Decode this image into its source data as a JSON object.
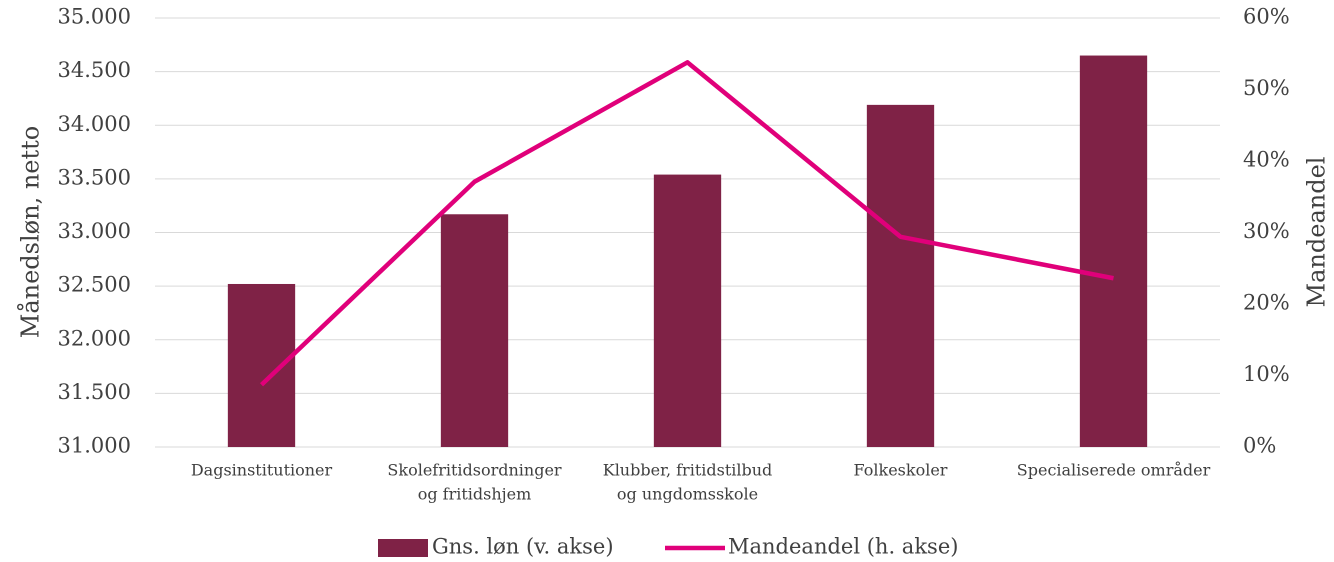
{
  "chart_data": {
    "type": "bar_line",
    "y_label": "Månedsløn, netto",
    "y2_label": "Mandeandel",
    "categories": [
      [
        "Dagsinstitutioner"
      ],
      [
        "Skolefritidsordninger",
        "og fritidshjem"
      ],
      [
        "Klubber, fritidstilbud",
        "og ungdomsskole"
      ],
      [
        "Folkeskoler"
      ],
      [
        "Specialiserede områder"
      ]
    ],
    "series": [
      {
        "name": "Gns. løn (v. akse)",
        "type": "bar",
        "color": "#7f2246",
        "values": [
          32520,
          33170,
          33540,
          34190,
          34650
        ]
      },
      {
        "name": "Mandeandel (h. akse)",
        "type": "line",
        "axis": "y2",
        "color": "#e0007a",
        "values": [
          8.7,
          37.1,
          53.8,
          29.4,
          23.6
        ]
      }
    ],
    "ylim": [
      31000,
      35000
    ],
    "yticks": [
      {
        "value": 31000,
        "label": "31.000"
      },
      {
        "value": 31500,
        "label": "31.500"
      },
      {
        "value": 32000,
        "label": "32.000"
      },
      {
        "value": 32500,
        "label": "32.500"
      },
      {
        "value": 33000,
        "label": "33.000"
      },
      {
        "value": 33500,
        "label": "33.500"
      },
      {
        "value": 34000,
        "label": "34.000"
      },
      {
        "value": 34500,
        "label": "34.500"
      },
      {
        "value": 35000,
        "label": "35.000"
      }
    ],
    "y2lim": [
      0,
      60
    ],
    "y2ticks": [
      {
        "value": 0,
        "label": "0%"
      },
      {
        "value": 10,
        "label": "10%"
      },
      {
        "value": 20,
        "label": "20%"
      },
      {
        "value": 30,
        "label": "30%"
      },
      {
        "value": 40,
        "label": "40%"
      },
      {
        "value": 50,
        "label": "50%"
      },
      {
        "value": 60,
        "label": "60%"
      }
    ],
    "grid": true,
    "legend": "bottom"
  }
}
